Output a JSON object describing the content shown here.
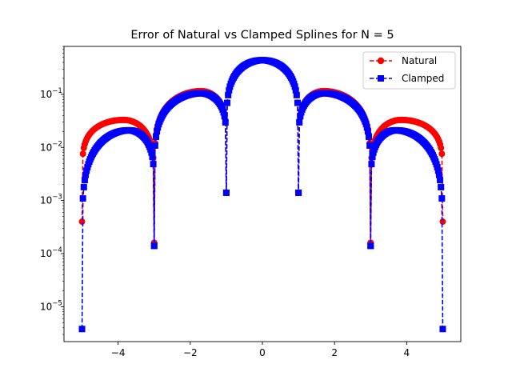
{
  "chart_data": {
    "type": "line",
    "title": "Error of Natural vs Clamped Splines for N = 5",
    "xlabel": "",
    "ylabel": "",
    "xlim": [
      -5.5,
      5.5
    ],
    "ylim": [
      2.2e-06,
      0.8
    ],
    "yscale": "log",
    "grid": false,
    "legend_position": "upper right",
    "x_ticks": [
      {
        "value": -4,
        "label": "−4"
      },
      {
        "value": -2,
        "label": "−2"
      },
      {
        "value": 0,
        "label": "0"
      },
      {
        "value": 2,
        "label": "2"
      },
      {
        "value": 4,
        "label": "4"
      }
    ],
    "y_ticks": [
      {
        "exp": -5,
        "label_base": "10",
        "label_exp": "−5"
      },
      {
        "exp": -4,
        "label_base": "10",
        "label_exp": "−4"
      },
      {
        "exp": -3,
        "label_base": "10",
        "label_exp": "−3"
      },
      {
        "exp": -2,
        "label_base": "10",
        "label_exp": "−2"
      },
      {
        "exp": -1,
        "label_base": "10",
        "label_exp": "−1"
      }
    ],
    "series": [
      {
        "name": "Natural",
        "color": "#ff0000",
        "marker": "circle",
        "linestyle": "dashed",
        "segments": [
          {
            "a": -5,
            "b": -3,
            "peak": 0.033,
            "peak_x": -3.85,
            "min_a": 0.0004,
            "min_b": 0.00016
          },
          {
            "a": -3,
            "b": -1,
            "peak": 0.115,
            "peak_x": -1.7,
            "min_a": 0.00016,
            "min_b": 0.0014
          },
          {
            "a": -1,
            "b": 1,
            "peak": 0.44,
            "peak_x": 0.0,
            "min_a": 0.0014,
            "min_b": 0.0014
          },
          {
            "a": 1,
            "b": 3,
            "peak": 0.115,
            "peak_x": 1.7,
            "min_a": 0.0014,
            "min_b": 0.00016
          },
          {
            "a": 3,
            "b": 5,
            "peak": 0.033,
            "peak_x": 3.85,
            "min_a": 0.00016,
            "min_b": 0.0004
          }
        ]
      },
      {
        "name": "Clamped",
        "color": "#0000ff",
        "marker": "square",
        "linestyle": "dashed",
        "segments": [
          {
            "a": -5,
            "b": -3,
            "peak": 0.021,
            "peak_x": -3.7,
            "min_a": 3.8e-06,
            "min_b": 0.00014
          },
          {
            "a": -3,
            "b": -1,
            "peak": 0.105,
            "peak_x": -1.7,
            "min_a": 0.00014,
            "min_b": 0.0014
          },
          {
            "a": -1,
            "b": 1,
            "peak": 0.44,
            "peak_x": 0.0,
            "min_a": 0.0014,
            "min_b": 0.0014
          },
          {
            "a": 1,
            "b": 3,
            "peak": 0.105,
            "peak_x": 1.7,
            "min_a": 0.0014,
            "min_b": 0.00014
          },
          {
            "a": 3,
            "b": 5,
            "peak": 0.021,
            "peak_x": 3.7,
            "min_a": 0.00014,
            "min_b": 3.8e-06
          }
        ]
      }
    ]
  }
}
